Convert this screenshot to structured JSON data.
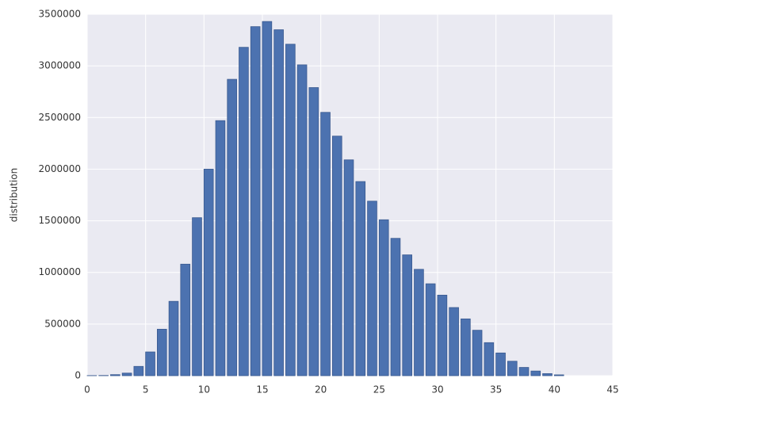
{
  "chart_data": {
    "type": "bar",
    "ylabel": "distribution",
    "x": [
      0,
      1,
      2,
      3,
      4,
      5,
      6,
      7,
      8,
      9,
      10,
      11,
      12,
      13,
      14,
      15,
      16,
      17,
      18,
      19,
      20,
      21,
      22,
      23,
      24,
      25,
      26,
      27,
      28,
      29,
      30,
      31,
      32,
      33,
      34,
      35,
      36,
      37,
      38,
      39,
      40
    ],
    "values": [
      1000,
      2000,
      10000,
      25000,
      90000,
      230000,
      450000,
      720000,
      1080000,
      1530000,
      2000000,
      2470000,
      2870000,
      3180000,
      3380000,
      3430000,
      3350000,
      3210000,
      3010000,
      2790000,
      2550000,
      2320000,
      2090000,
      1880000,
      1690000,
      1510000,
      1330000,
      1170000,
      1030000,
      890000,
      780000,
      660000,
      550000,
      440000,
      320000,
      220000,
      140000,
      80000,
      45000,
      20000,
      8000
    ],
    "color": "#4c72b0",
    "xlim": [
      0,
      45
    ],
    "xticks": [
      0,
      5,
      10,
      15,
      20,
      25,
      30,
      35,
      40,
      45
    ],
    "ylim": [
      0,
      3500000
    ],
    "yticks": [
      0,
      500000,
      1000000,
      1500000,
      2000000,
      2500000,
      3000000,
      3500000
    ],
    "grid": true
  }
}
